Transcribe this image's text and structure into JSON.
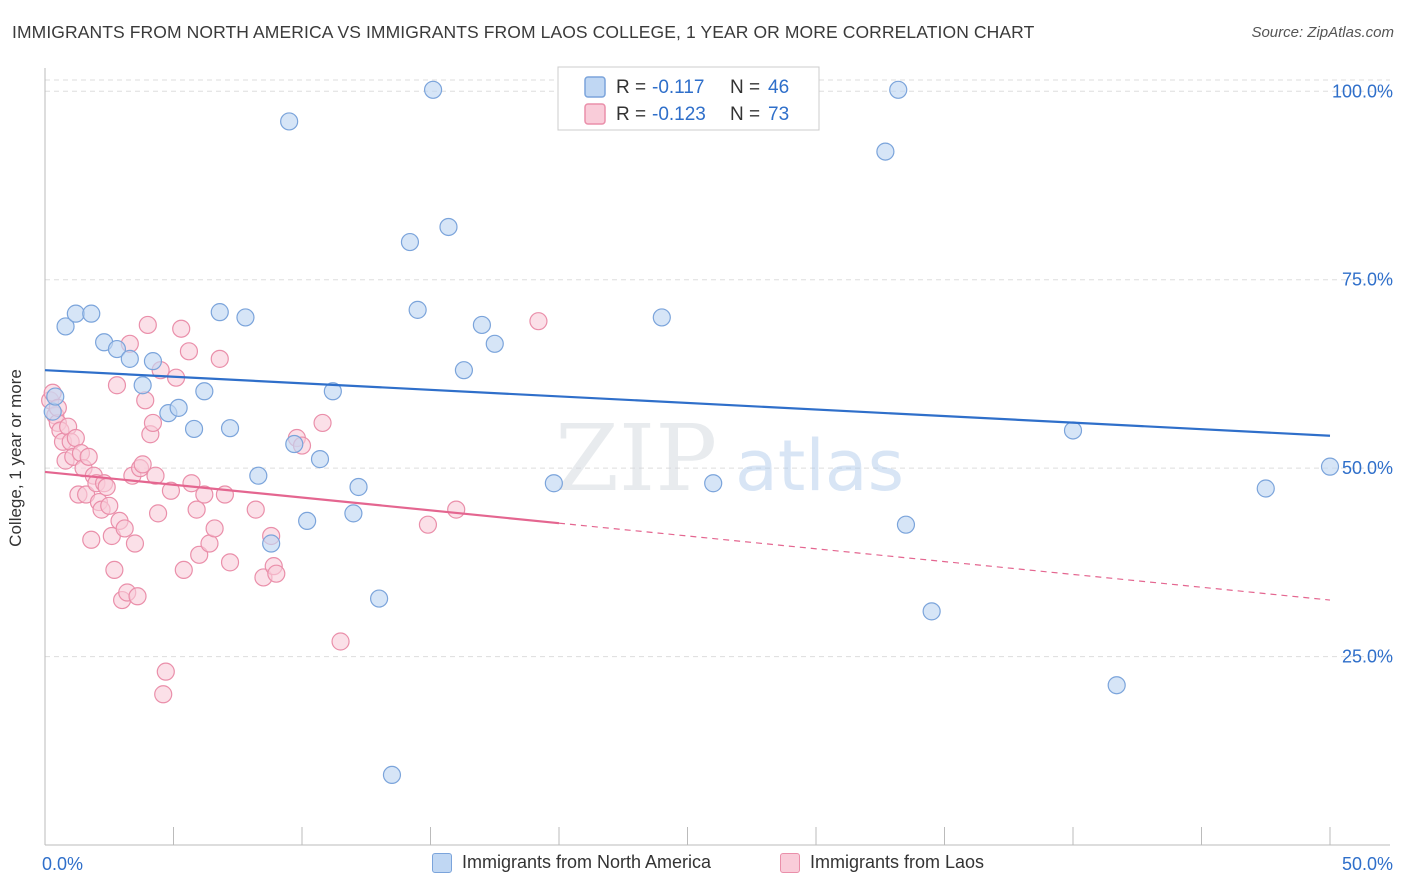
{
  "title": "IMMIGRANTS FROM NORTH AMERICA VS IMMIGRANTS FROM LAOS COLLEGE, 1 YEAR OR MORE CORRELATION CHART",
  "source": "Source: ZipAtlas.com",
  "watermark": {
    "zip": "ZIP",
    "atlas": "atlas"
  },
  "colors": {
    "blue_fill": "#c0d7f3",
    "blue_stroke": "#7ba4db",
    "blue_line": "#2f6fca",
    "pink_fill": "#f9ccd9",
    "pink_stroke": "#ea8faa",
    "pink_line": "#e46690",
    "value_text": "#2f6fca",
    "grid": "#dddddd"
  },
  "legend_top": [
    {
      "r_label": "R =",
      "r_value": "-0.117",
      "n_label": "N =",
      "n_value": "46"
    },
    {
      "r_label": "R =",
      "r_value": "-0.123",
      "n_label": "N =",
      "n_value": "73"
    }
  ],
  "chart_data": {
    "type": "scatter",
    "title": "IMMIGRANTS FROM NORTH AMERICA VS IMMIGRANTS FROM LAOS COLLEGE, 1 YEAR OR MORE CORRELATION CHART",
    "xlabel": "",
    "ylabel": "College, 1 year or more",
    "xlim": [
      0,
      50
    ],
    "ylim": [
      0,
      105
    ],
    "x_tick_labels": [
      "0.0%",
      "50.0%"
    ],
    "y_ticks": [
      25,
      50,
      75,
      100
    ],
    "y_tick_labels": [
      "25.0%",
      "50.0%",
      "75.0%",
      "100.0%"
    ],
    "grid": true,
    "legend_position": "top-center",
    "series": [
      {
        "name": "Immigrants from North America",
        "color": "#7ba4db",
        "r": -0.117,
        "n": 46,
        "trend": {
          "x": [
            0,
            50
          ],
          "y": [
            63.0,
            54.3
          ],
          "dashed_from": null
        },
        "points": [
          [
            0.3,
            57.5
          ],
          [
            0.4,
            59.5
          ],
          [
            0.8,
            68.8
          ],
          [
            1.2,
            70.5
          ],
          [
            1.8,
            70.5
          ],
          [
            2.3,
            66.7
          ],
          [
            2.8,
            65.8
          ],
          [
            3.3,
            64.5
          ],
          [
            3.8,
            61.0
          ],
          [
            4.2,
            64.2
          ],
          [
            4.8,
            57.3
          ],
          [
            5.2,
            58.0
          ],
          [
            5.8,
            55.2
          ],
          [
            6.2,
            60.2
          ],
          [
            6.8,
            70.7
          ],
          [
            7.2,
            55.3
          ],
          [
            7.8,
            70.0
          ],
          [
            8.3,
            49.0
          ],
          [
            8.8,
            40.0
          ],
          [
            9.5,
            96.0
          ],
          [
            9.7,
            53.2
          ],
          [
            10.2,
            43.0
          ],
          [
            10.7,
            51.2
          ],
          [
            11.2,
            60.2
          ],
          [
            12.0,
            44.0
          ],
          [
            12.2,
            47.5
          ],
          [
            13.0,
            32.7
          ],
          [
            13.5,
            9.3
          ],
          [
            14.2,
            80.0
          ],
          [
            14.5,
            71.0
          ],
          [
            15.1,
            100.2
          ],
          [
            15.7,
            82.0
          ],
          [
            16.3,
            63.0
          ],
          [
            17.0,
            69.0
          ],
          [
            17.5,
            66.5
          ],
          [
            19.8,
            48.0
          ],
          [
            24.0,
            70.0
          ],
          [
            26.0,
            48.0
          ],
          [
            32.7,
            92.0
          ],
          [
            33.2,
            100.2
          ],
          [
            33.5,
            42.5
          ],
          [
            34.5,
            31.0
          ],
          [
            40.0,
            55.0
          ],
          [
            41.7,
            21.2
          ],
          [
            47.5,
            47.3
          ],
          [
            50.0,
            50.2
          ]
        ]
      },
      {
        "name": "Immigrants from Laos",
        "color": "#ea8faa",
        "r": -0.123,
        "n": 73,
        "trend": {
          "x": [
            0,
            50
          ],
          "y": [
            49.5,
            32.5
          ],
          "dashed_from": 20
        },
        "points": [
          [
            0.2,
            59.0
          ],
          [
            0.3,
            60.0
          ],
          [
            0.4,
            57.0
          ],
          [
            0.5,
            56.0
          ],
          [
            0.6,
            55.0
          ],
          [
            0.7,
            53.5
          ],
          [
            0.8,
            51.0
          ],
          [
            0.9,
            55.5
          ],
          [
            1.0,
            53.5
          ],
          [
            1.1,
            51.5
          ],
          [
            1.2,
            54.0
          ],
          [
            1.3,
            46.5
          ],
          [
            1.4,
            52.0
          ],
          [
            1.5,
            50.0
          ],
          [
            1.6,
            46.5
          ],
          [
            1.7,
            51.5
          ],
          [
            1.8,
            40.5
          ],
          [
            1.9,
            49.0
          ],
          [
            2.0,
            48.0
          ],
          [
            2.1,
            45.5
          ],
          [
            2.2,
            44.5
          ],
          [
            2.3,
            48.0
          ],
          [
            2.4,
            47.5
          ],
          [
            2.5,
            45.0
          ],
          [
            2.6,
            41.0
          ],
          [
            2.7,
            36.5
          ],
          [
            2.8,
            61.0
          ],
          [
            2.9,
            43.0
          ],
          [
            3.0,
            32.5
          ],
          [
            3.1,
            42.0
          ],
          [
            3.2,
            33.5
          ],
          [
            3.3,
            66.5
          ],
          [
            3.4,
            49.0
          ],
          [
            3.5,
            40.0
          ],
          [
            3.6,
            33.0
          ],
          [
            3.7,
            50.0
          ],
          [
            3.8,
            50.5
          ],
          [
            3.9,
            59.0
          ],
          [
            4.0,
            69.0
          ],
          [
            4.1,
            54.5
          ],
          [
            4.2,
            56.0
          ],
          [
            4.3,
            49.0
          ],
          [
            4.4,
            44.0
          ],
          [
            4.5,
            63.0
          ],
          [
            4.6,
            20.0
          ],
          [
            4.7,
            23.0
          ],
          [
            4.9,
            47.0
          ],
          [
            5.1,
            62.0
          ],
          [
            5.3,
            68.5
          ],
          [
            5.4,
            36.5
          ],
          [
            5.6,
            65.5
          ],
          [
            5.7,
            48.0
          ],
          [
            5.9,
            44.5
          ],
          [
            6.0,
            38.5
          ],
          [
            6.2,
            46.5
          ],
          [
            6.4,
            40.0
          ],
          [
            6.6,
            42.0
          ],
          [
            6.8,
            64.5
          ],
          [
            7.0,
            46.5
          ],
          [
            7.2,
            37.5
          ],
          [
            8.2,
            44.5
          ],
          [
            8.5,
            35.5
          ],
          [
            8.8,
            41.0
          ],
          [
            8.9,
            37.0
          ],
          [
            9.0,
            36.0
          ],
          [
            9.8,
            54.0
          ],
          [
            10.0,
            53.0
          ],
          [
            10.8,
            56.0
          ],
          [
            11.5,
            27.0
          ],
          [
            14.9,
            42.5
          ],
          [
            16.0,
            44.5
          ],
          [
            19.2,
            69.5
          ],
          [
            0.5,
            58.0
          ]
        ]
      }
    ]
  }
}
